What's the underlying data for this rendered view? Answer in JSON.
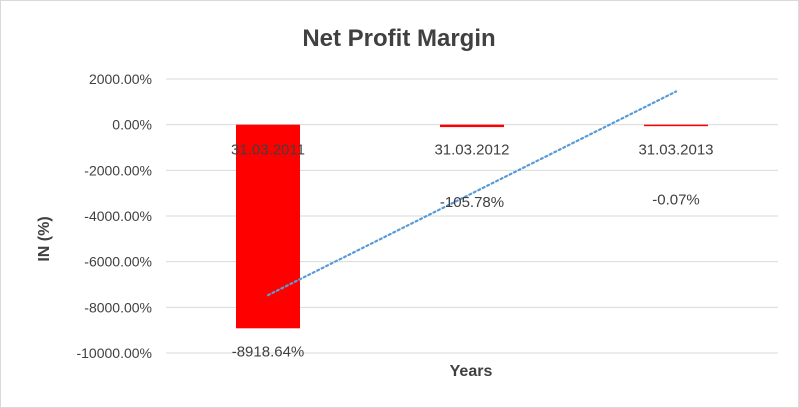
{
  "chart_data": {
    "type": "bar",
    "title": "Net Profit Margin",
    "xlabel": "Years",
    "ylabel": "IN (%)",
    "categories": [
      "31.03.2011",
      "31.03.2012",
      "31.03.2013"
    ],
    "series": [
      {
        "values": [
          -8918.64,
          -105.78,
          -0.07
        ],
        "data_labels": [
          "-8918.64%",
          "-105.78%",
          "-0.07%"
        ],
        "color": "#ff0000"
      }
    ],
    "trendline": {
      "style": "dotted",
      "color": "#5b9bd5",
      "type": "linear"
    },
    "ylim": [
      -10000,
      2000
    ],
    "yticks": [
      2000,
      0,
      -2000,
      -4000,
      -6000,
      -8000,
      -10000
    ],
    "ytick_labels": [
      "2000.00%",
      "0.00%",
      "-2000.00%",
      "-4000.00%",
      "-6000.00%",
      "-8000.00%",
      "-10000.00%"
    ],
    "grid": true,
    "legend": "none"
  }
}
